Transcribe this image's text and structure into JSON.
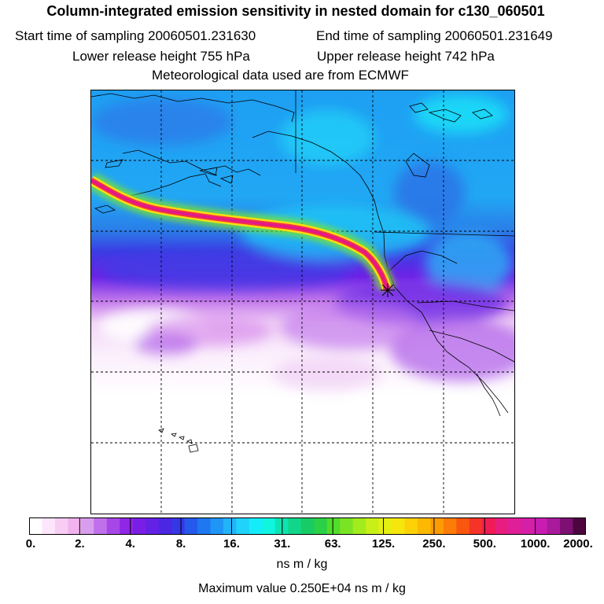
{
  "header": {
    "title": "Column-integrated emission sensitivity in nested domain for c130_060501",
    "start_label": "Start time of sampling 20060501.231630",
    "end_label": "End time of sampling 20060501.231649",
    "lower_label": "Lower release height  755 hPa",
    "upper_label": "Upper release height  742 hPa",
    "met_label": "Meteorological data used are from ECMWF"
  },
  "colorbar": {
    "tick_labels": [
      "0.",
      "2.",
      "4.",
      "8.",
      "16.",
      "31.",
      "63.",
      "125.",
      "250.",
      "500.",
      "1000.",
      "2000."
    ],
    "colors": [
      "#ffffff",
      "#fde6fb",
      "#f8cdf4",
      "#f2b2ee",
      "#d99ded",
      "#c070ea",
      "#a847e8",
      "#9026e6",
      "#7a1ee6",
      "#6421e6",
      "#4b26e3",
      "#3637e4",
      "#2559eb",
      "#1e78f0",
      "#1f95f5",
      "#22b4f8",
      "#1fd3fb",
      "#15ecfb",
      "#0ff5e0",
      "#0de4b0",
      "#11d68a",
      "#19cb64",
      "#2ad046",
      "#52dc2c",
      "#7ae424",
      "#a2eb1c",
      "#c8ef18",
      "#e6ef12",
      "#f7e60c",
      "#fcd107",
      "#fdb804",
      "#fd9b03",
      "#fc7c07",
      "#f9560e",
      "#f53327",
      "#f01c55",
      "#e81d7f",
      "#de1f97",
      "#d41fa6",
      "#c81db1",
      "#a91a9c",
      "#7d1072",
      "#4c063e"
    ],
    "units": "ns m / kg",
    "max_value_text": "Maximum value  0.250E+04 ns m / kg"
  },
  "map": {
    "colors": {
      "ocean_deep": "#2f56e6",
      "ocean_blue": "#1fa1f3",
      "cyan": "#19e6f7",
      "purple": "#8a22e6",
      "lavender": "#ecc6f4",
      "plume_core": "#e8186a",
      "plume_edge": "#fff01a"
    },
    "grid": "dashed",
    "release_marker": "cross-star"
  }
}
